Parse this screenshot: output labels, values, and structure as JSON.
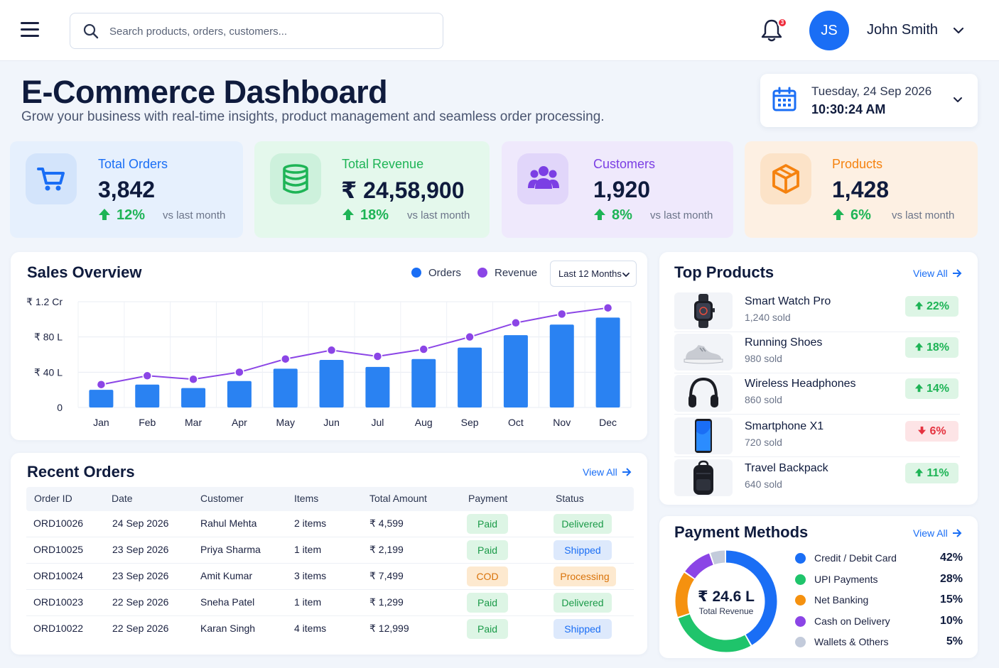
{
  "search": {
    "placeholder": "Search products, orders, customers..."
  },
  "notifications": {
    "count": "3"
  },
  "user": {
    "initials": "JS",
    "name": "John Smith"
  },
  "page": {
    "title": "E-Commerce Dashboard",
    "subtitle": "Grow your business with real-time insights, product management and seamless order processing."
  },
  "datetime": {
    "date": "Tuesday, 24 Sep 2026",
    "time": "10:30:24 AM"
  },
  "stats": [
    {
      "label": "Total Orders",
      "value": "3,842",
      "change": "12%",
      "vs": "vs last month",
      "color": "#1a6ef5",
      "icon": "cart-icon"
    },
    {
      "label": "Total Revenue",
      "value": "₹ 24,58,900",
      "change": "18%",
      "vs": "vs last month",
      "color": "#1eb456",
      "icon": "coins-icon"
    },
    {
      "label": "Customers",
      "value": "1,920",
      "change": "8%",
      "vs": "vs last month",
      "color": "#7b3fe4",
      "icon": "users-icon"
    },
    {
      "label": "Products",
      "value": "1,428",
      "change": "6%",
      "vs": "vs last month",
      "color": "#f5820f",
      "icon": "box-icon"
    }
  ],
  "sales": {
    "title": "Sales Overview",
    "range": "Last 12 Months"
  },
  "chart_data": {
    "type": "bar",
    "title": "Sales Overview",
    "categories": [
      "Jan",
      "Feb",
      "Mar",
      "Apr",
      "May",
      "Jun",
      "Jul",
      "Aug",
      "Sep",
      "Oct",
      "Nov",
      "Dec"
    ],
    "y_ticks": [
      "₹ 1.2 Cr",
      "₹ 80 L",
      "₹ 40 L",
      "0"
    ],
    "ylim": [
      0,
      120
    ],
    "series": [
      {
        "name": "Orders",
        "type": "bar",
        "color": "#2a82f2",
        "values": [
          20,
          26,
          22,
          30,
          44,
          54,
          46,
          55,
          68,
          82,
          94,
          102
        ]
      },
      {
        "name": "Revenue",
        "type": "line",
        "color": "#8b45e6",
        "values": [
          26,
          36,
          32,
          40,
          55,
          65,
          58,
          66,
          80,
          96,
          106,
          113
        ]
      }
    ],
    "grid": true,
    "legend": "top-right"
  },
  "orders": {
    "title": "Recent Orders",
    "view_all": "View All",
    "columns": [
      "Order ID",
      "Date",
      "Customer",
      "Items",
      "Total Amount",
      "Payment",
      "Status"
    ],
    "rows": [
      {
        "id": "ORD10026",
        "date": "24 Sep 2026",
        "customer": "Rahul Mehta",
        "items": "2 items",
        "amount": "₹ 4,599",
        "payment": "Paid",
        "status": "Delivered"
      },
      {
        "id": "ORD10025",
        "date": "23 Sep 2026",
        "customer": "Priya Sharma",
        "items": "1 item",
        "amount": "₹ 2,199",
        "payment": "Paid",
        "status": "Shipped"
      },
      {
        "id": "ORD10024",
        "date": "23 Sep 2026",
        "customer": "Amit Kumar",
        "items": "3 items",
        "amount": "₹ 7,499",
        "payment": "COD",
        "status": "Processing"
      },
      {
        "id": "ORD10023",
        "date": "22 Sep 2026",
        "customer": "Sneha Patel",
        "items": "1 item",
        "amount": "₹ 1,299",
        "payment": "Paid",
        "status": "Delivered"
      },
      {
        "id": "ORD10022",
        "date": "22 Sep 2026",
        "customer": "Karan Singh",
        "items": "4 items",
        "amount": "₹ 12,999",
        "payment": "Paid",
        "status": "Shipped"
      }
    ]
  },
  "top_products": {
    "title": "Top Products",
    "view_all": "View All",
    "items": [
      {
        "name": "Smart Watch Pro",
        "sold": "1,240 sold",
        "change": "22%",
        "trend": "up",
        "icon": "smartwatch-icon"
      },
      {
        "name": "Running Shoes",
        "sold": "980 sold",
        "change": "18%",
        "trend": "up",
        "icon": "shoe-icon"
      },
      {
        "name": "Wireless Headphones",
        "sold": "860 sold",
        "change": "14%",
        "trend": "up",
        "icon": "headphones-icon"
      },
      {
        "name": "Smartphone X1",
        "sold": "720 sold",
        "change": "6%",
        "trend": "down",
        "icon": "smartphone-icon"
      },
      {
        "name": "Travel Backpack",
        "sold": "640 sold",
        "change": "11%",
        "trend": "up",
        "icon": "backpack-icon"
      }
    ]
  },
  "payments": {
    "title": "Payment Methods",
    "view_all": "View All",
    "total": "₹ 24.6 L",
    "total_label": "Total Revenue",
    "methods": [
      {
        "name": "Credit / Debit Card",
        "pct": "42%",
        "value": 42,
        "color": "#1a6ef5"
      },
      {
        "name": "UPI Payments",
        "pct": "28%",
        "value": 28,
        "color": "#1fc46b"
      },
      {
        "name": "Net Banking",
        "pct": "15%",
        "value": 15,
        "color": "#f5910f"
      },
      {
        "name": "Cash on Delivery",
        "pct": "10%",
        "value": 10,
        "color": "#8b45e6"
      },
      {
        "name": "Wallets & Others",
        "pct": "5%",
        "value": 5,
        "color": "#c3cbdb"
      }
    ]
  }
}
